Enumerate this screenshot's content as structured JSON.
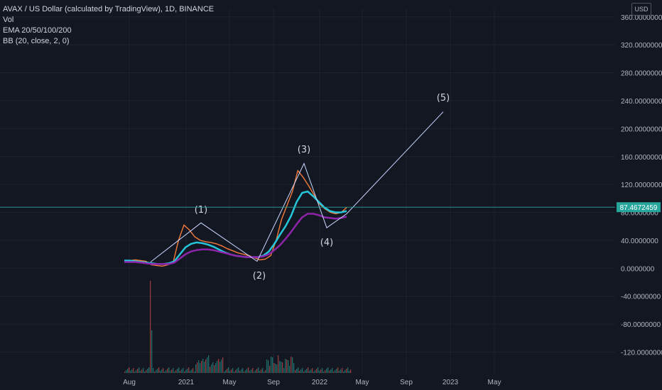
{
  "legend": {
    "title": "AVAX / US Dollar (calculated by TradingView), 1D, BINANCE",
    "vol": "Vol",
    "ema": "EMA 20/50/100/200",
    "bb": "BB (20, close, 2, 0)"
  },
  "currency": "USD",
  "colors": {
    "background": "#131722",
    "price_label_bg": "#26a69a",
    "grid": "#1e222d"
  },
  "chart_data": {
    "type": "line",
    "title": "AVAX / US Dollar (calculated by TradingView), 1D, BINANCE",
    "y_ticks": [
      "360.0000000",
      "320.0000000",
      "280.0000000",
      "240.0000000",
      "200.0000000",
      "160.0000000",
      "120.0000000",
      "80.0000000",
      "40.0000000",
      "0.0000000",
      "-40.0000000",
      "-80.0000000",
      "-120.0000000"
    ],
    "y_values": [
      360,
      320,
      280,
      240,
      200,
      160,
      120,
      80,
      40,
      0,
      -40,
      -80,
      -120
    ],
    "ylim": [
      -152,
      372
    ],
    "x_ticks": [
      "Aug",
      "2021",
      "May",
      "Sep",
      "2022",
      "May",
      "Sep",
      "2023",
      "May"
    ],
    "last_price": "87.4672459",
    "last_price_value": 87.47,
    "wave_labels": [
      {
        "label": "(1)",
        "value": 65
      },
      {
        "label": "(2)",
        "value": 10
      },
      {
        "label": "(3)",
        "value": 150
      },
      {
        "label": "(4)",
        "value": 58
      },
      {
        "label": "(5)",
        "value": 224
      }
    ],
    "series": [
      {
        "values": [
          10,
          11,
          12,
          11,
          10,
          5,
          4,
          3,
          5,
          8,
          40,
          62,
          55,
          45,
          40,
          38,
          37,
          35,
          32,
          28,
          25,
          22,
          20,
          18,
          15,
          12,
          13,
          18,
          40,
          70,
          90,
          110,
          140,
          130,
          118,
          105,
          92,
          85,
          80,
          78,
          80,
          87
        ]
      },
      {
        "values": [
          11,
          11,
          10,
          9,
          8,
          7,
          6,
          6,
          7,
          10,
          20,
          30,
          35,
          37,
          36,
          34,
          31,
          27,
          23,
          20,
          18,
          17,
          16,
          16,
          16,
          18,
          24,
          35,
          48,
          60,
          75,
          95,
          108,
          110,
          103,
          95,
          87,
          82,
          80,
          80,
          82
        ]
      }
    ]
  },
  "axes": {
    "y_ticks_note": "right price scale"
  }
}
